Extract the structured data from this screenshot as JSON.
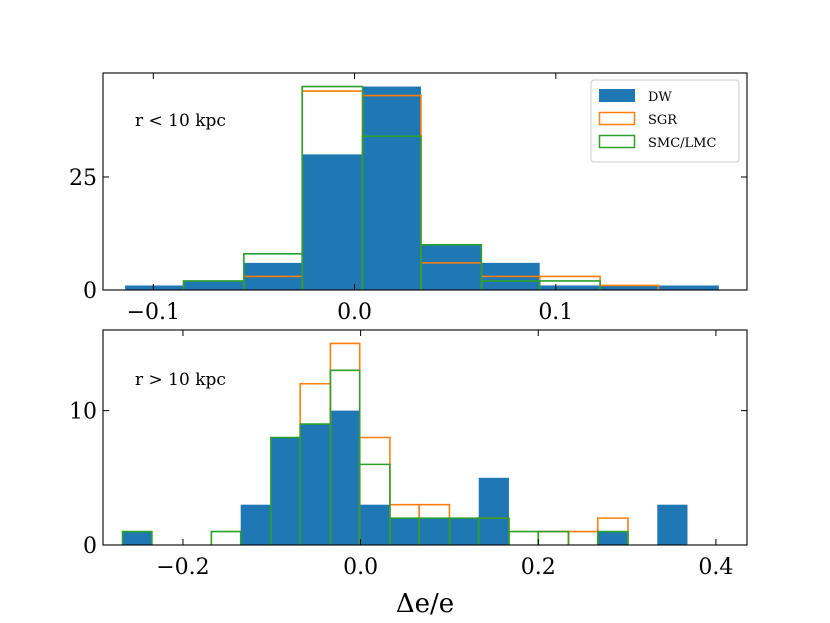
{
  "chart_data": [
    {
      "type": "bar",
      "panel_label": "r < 10 kpc",
      "xlabel": "",
      "ylabel": "",
      "xlim": [
        -0.125,
        0.195
      ],
      "ylim": [
        0,
        48
      ],
      "xticks": [
        -0.1,
        0.0,
        0.1
      ],
      "xtick_labels": [
        "−0.1",
        "0.0",
        "0.1"
      ],
      "yticks": [
        0,
        25
      ],
      "ytick_labels": [
        "0",
        "25"
      ],
      "legend": {
        "position": "top-right",
        "entries": [
          "DW",
          "SGR",
          "SMC/LMC"
        ]
      },
      "bin_edges": [
        -0.114,
        -0.085,
        -0.055,
        -0.026,
        0.004,
        0.033,
        0.063,
        0.092,
        0.122,
        0.151,
        0.181
      ],
      "series": [
        {
          "name": "DW",
          "style": "filled",
          "color": "#1f77b4",
          "values": [
            1,
            2,
            6,
            30,
            45,
            10,
            6,
            1,
            1,
            1
          ]
        },
        {
          "name": "SGR",
          "style": "step",
          "color": "#ff7f0e",
          "values": [
            0,
            0,
            3,
            44,
            43,
            6,
            3,
            3,
            1,
            0
          ]
        },
        {
          "name": "SMC/LMC",
          "style": "step",
          "color": "#2ca02c",
          "values": [
            0,
            2,
            8,
            45,
            34,
            10,
            2,
            2,
            0,
            0
          ]
        }
      ]
    },
    {
      "type": "bar",
      "panel_label": "r > 10 kpc",
      "xlabel": "Δe/e",
      "ylabel": "",
      "xlim": [
        -0.29,
        0.435
      ],
      "ylim": [
        0,
        16
      ],
      "xticks": [
        -0.2,
        0.0,
        0.2,
        0.4
      ],
      "xtick_labels": [
        "−0.2",
        "0.0",
        "0.2",
        "0.4"
      ],
      "yticks": [
        0,
        10
      ],
      "ytick_labels": [
        "0",
        "10"
      ],
      "bin_edges": [
        -0.268,
        -0.235,
        -0.202,
        -0.168,
        -0.135,
        -0.101,
        -0.068,
        -0.034,
        -0.001,
        0.033,
        0.066,
        0.1,
        0.133,
        0.167,
        0.2,
        0.234,
        0.267,
        0.301,
        0.334,
        0.368,
        0.401
      ],
      "series": [
        {
          "name": "DW",
          "style": "filled",
          "color": "#1f77b4",
          "values": [
            1,
            0,
            0,
            0,
            3,
            8,
            9,
            10,
            3,
            2,
            2,
            2,
            5,
            0,
            0,
            0,
            1,
            0,
            3,
            0
          ]
        },
        {
          "name": "SGR",
          "style": "step",
          "color": "#ff7f0e",
          "values": [
            0,
            0,
            0,
            0,
            0,
            0,
            12,
            15,
            8,
            3,
            3,
            0,
            2,
            0,
            1,
            1,
            2,
            0,
            0,
            0
          ]
        },
        {
          "name": "SMC/LMC",
          "style": "step",
          "color": "#2ca02c",
          "values": [
            1,
            0,
            0,
            1,
            0,
            8,
            9,
            13,
            6,
            2,
            2,
            2,
            2,
            1,
            1,
            0,
            1,
            0,
            0,
            0
          ]
        }
      ]
    }
  ]
}
